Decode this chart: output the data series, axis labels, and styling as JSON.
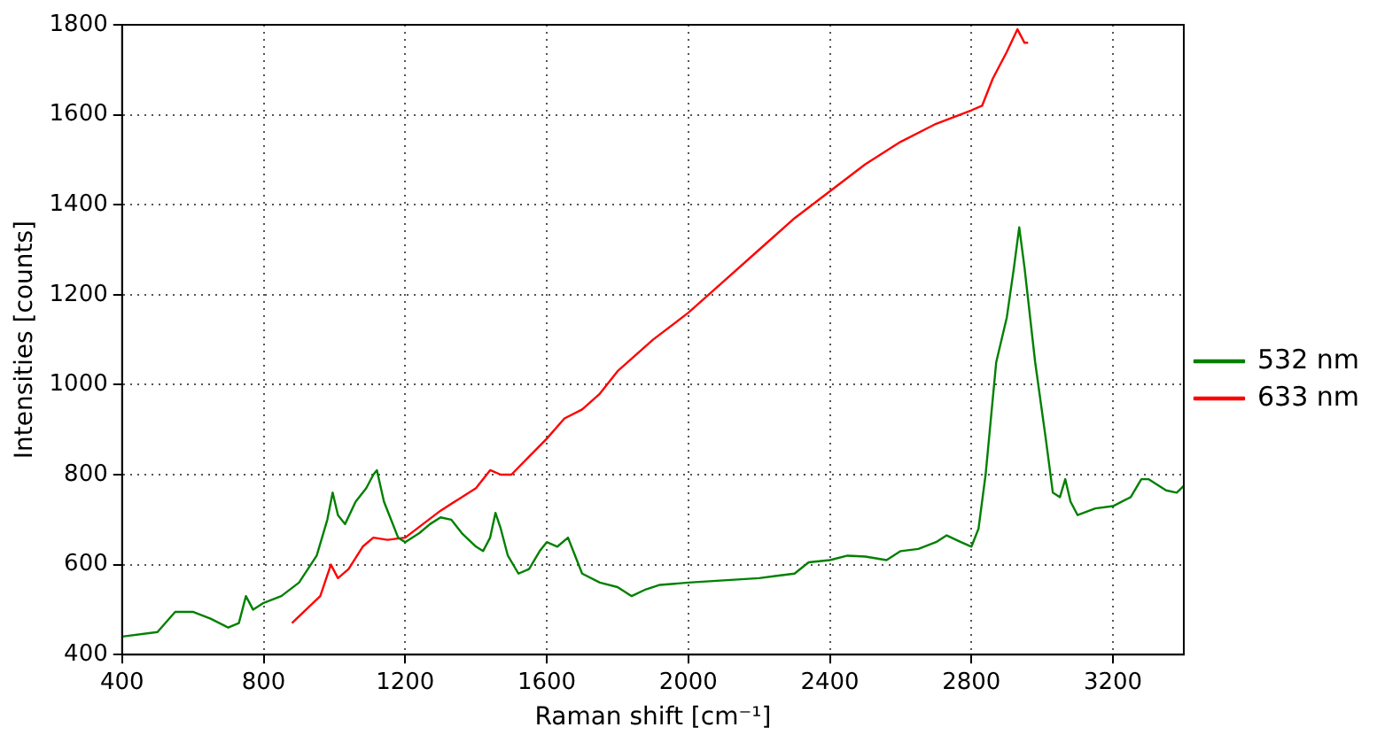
{
  "chart_data": {
    "type": "line",
    "xlabel": "Raman shift [cm⁻¹]",
    "ylabel": "Intensities [counts]",
    "xlim": [
      400,
      3400
    ],
    "xticks": [
      400,
      800,
      1200,
      1600,
      2000,
      2400,
      2800,
      3200
    ],
    "ylim": [
      400,
      1800
    ],
    "yticks": [
      400,
      600,
      800,
      1000,
      1200,
      1400,
      1600,
      1800
    ],
    "grid": true,
    "legend": "right",
    "marker": "none",
    "series": [
      {
        "name": "532 nm",
        "color": "#008000",
        "x": [
          400,
          500,
          550,
          600,
          650,
          700,
          730,
          750,
          770,
          800,
          850,
          900,
          950,
          980,
          995,
          1010,
          1030,
          1060,
          1090,
          1110,
          1120,
          1140,
          1160,
          1180,
          1200,
          1240,
          1270,
          1300,
          1330,
          1360,
          1400,
          1420,
          1440,
          1455,
          1470,
          1490,
          1520,
          1550,
          1580,
          1600,
          1630,
          1660,
          1680,
          1700,
          1750,
          1800,
          1840,
          1880,
          1920,
          2000,
          2100,
          2200,
          2250,
          2300,
          2340,
          2400,
          2450,
          2500,
          2560,
          2600,
          2650,
          2700,
          2730,
          2770,
          2800,
          2820,
          2840,
          2870,
          2900,
          2920,
          2935,
          2950,
          2980,
          3010,
          3030,
          3050,
          3065,
          3080,
          3100,
          3150,
          3200,
          3250,
          3280,
          3300,
          3350,
          3380,
          3400
        ],
        "values": [
          440,
          450,
          495,
          495,
          480,
          460,
          470,
          530,
          500,
          515,
          530,
          560,
          620,
          700,
          760,
          710,
          690,
          740,
          770,
          800,
          810,
          740,
          700,
          660,
          650,
          670,
          690,
          705,
          700,
          670,
          640,
          630,
          660,
          715,
          680,
          620,
          580,
          590,
          630,
          650,
          640,
          660,
          620,
          580,
          560,
          550,
          530,
          545,
          555,
          560,
          565,
          570,
          575,
          580,
          605,
          610,
          620,
          618,
          610,
          630,
          635,
          650,
          665,
          650,
          640,
          680,
          800,
          1050,
          1150,
          1260,
          1350,
          1260,
          1050,
          880,
          760,
          750,
          790,
          740,
          710,
          725,
          730,
          750,
          790,
          790,
          765,
          760,
          775
        ]
      },
      {
        "name": "633 nm",
        "color": "#ff0000",
        "x": [
          880,
          920,
          960,
          990,
          1010,
          1040,
          1080,
          1110,
          1150,
          1200,
          1250,
          1300,
          1350,
          1400,
          1440,
          1470,
          1500,
          1550,
          1600,
          1650,
          1700,
          1750,
          1800,
          1900,
          2000,
          2100,
          2200,
          2300,
          2400,
          2500,
          2600,
          2700,
          2800,
          2830,
          2860,
          2900,
          2930,
          2950,
          2960
        ],
        "values": [
          470,
          500,
          530,
          600,
          570,
          590,
          640,
          660,
          655,
          660,
          690,
          720,
          745,
          770,
          810,
          800,
          800,
          840,
          880,
          925,
          945,
          980,
          1030,
          1100,
          1160,
          1230,
          1300,
          1370,
          1430,
          1490,
          1540,
          1580,
          1610,
          1620,
          1680,
          1740,
          1790,
          1760,
          1760
        ]
      }
    ]
  }
}
